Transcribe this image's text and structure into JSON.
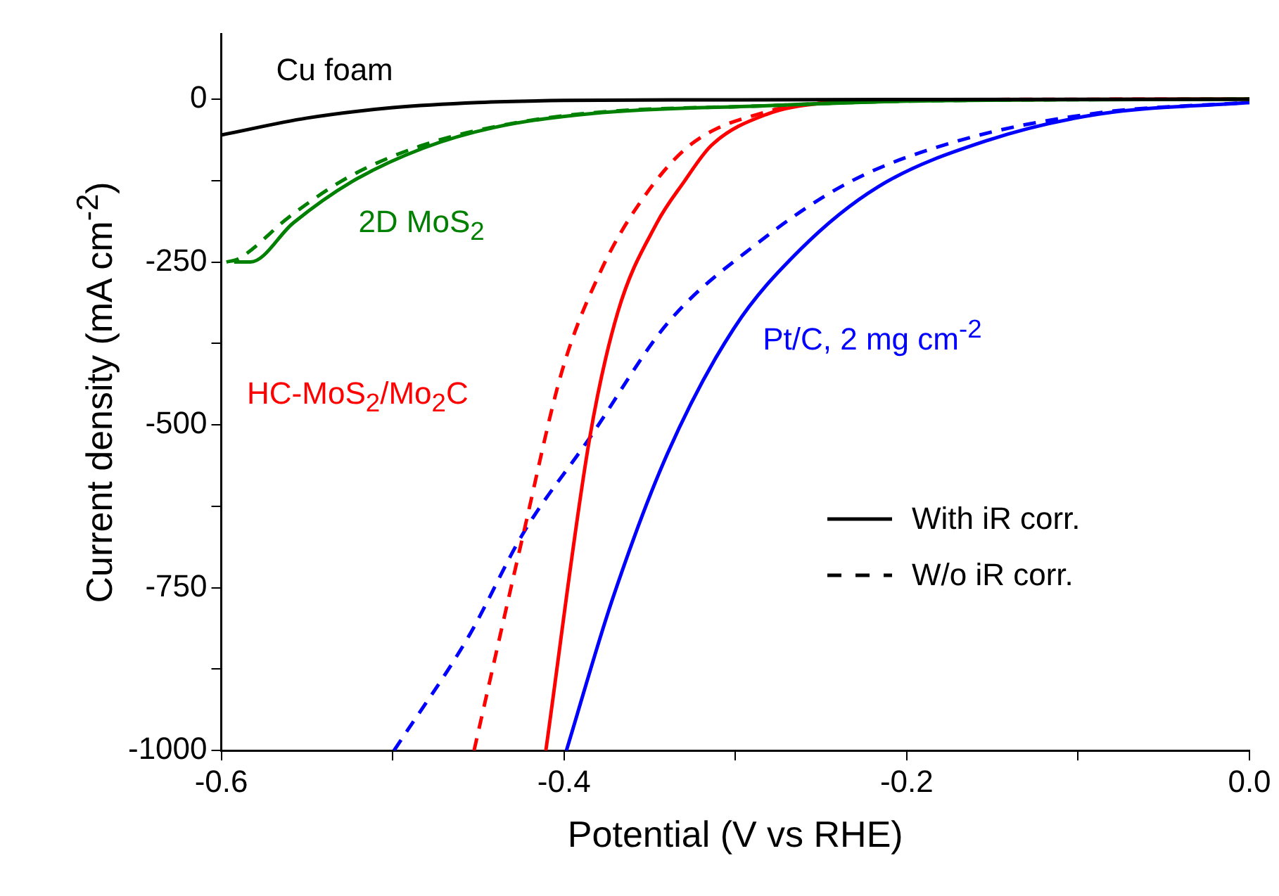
{
  "chart_data": {
    "type": "line",
    "xlabel": "Potential (V vs RHE)",
    "ylabel": "Current density (mA cm$^{-2}$)",
    "xlim": [
      -0.6,
      0
    ],
    "ylim": [
      -1000,
      100
    ],
    "xticks": [
      -0.6,
      {
        "value": -0.5,
        "label": null
      },
      -0.4,
      {
        "value": -0.3,
        "label": null
      },
      -0.2,
      {
        "value": -0.1,
        "label": null
      },
      {
        "value": 0,
        "label": "0.0"
      }
    ],
    "yticks": [
      -1000,
      {
        "value": -875,
        "label": null
      },
      -750,
      {
        "value": -625,
        "label": null
      },
      -500,
      {
        "value": -375,
        "label": null
      },
      -250,
      {
        "value": -125,
        "label": null
      },
      0
    ],
    "marker": "none",
    "annotations": [
      "With iR corr.",
      "W/o iR corr."
    ],
    "series": [
      {
        "name": "Cu foam",
        "color": "#000000",
        "line_style": "solid",
        "x": [
          -0.6,
          -0.55,
          -0.5,
          -0.45,
          -0.4,
          -0.3,
          0
        ],
        "values": [
          -55,
          -29,
          -13,
          -5,
          -2,
          -1,
          0
        ]
      },
      {
        "name": "2D MoS$_{2}$",
        "color": "#008000",
        "line_style": "solid",
        "x": [
          -0.5925,
          -0.583,
          -0.558,
          -0.524,
          -0.482,
          -0.44,
          -0.384,
          -0.281,
          -0.2,
          0
        ],
        "values": [
          -250,
          -250,
          -190,
          -127,
          -75,
          -43,
          -22,
          -10,
          -3,
          0
        ]
      },
      {
        "color": "#008000",
        "line_style": "dashed",
        "x": [
          -0.597,
          -0.59,
          -0.56,
          -0.526,
          -0.484,
          -0.44,
          -0.384,
          -0.281,
          -0.2,
          0
        ],
        "values": [
          -250,
          -245,
          -180,
          -120,
          -72,
          -42,
          -21,
          -10,
          -3,
          0
        ]
      },
      {
        "name": "HC-MoS$_{2}$/Mo$_{2}$C",
        "color": "#ff0000",
        "line_style": "solid",
        "x": [
          -0.4106,
          -0.385,
          -0.3686,
          -0.346,
          -0.33,
          -0.314,
          -0.2815,
          -0.2494,
          -0.2,
          0
        ],
        "values": [
          -1000,
          -520,
          -327,
          -191,
          -127,
          -71,
          -23,
          -6,
          -1,
          0
        ]
      },
      {
        "color": "#ff0000",
        "line_style": "dashed",
        "x": [
          -0.4525,
          -0.4235,
          -0.401,
          -0.3784,
          -0.3557,
          -0.3267,
          -0.2815,
          -0.2494,
          -0.2,
          0
        ],
        "values": [
          -1000,
          -665,
          -416,
          -263,
          -159,
          -71,
          -19,
          -6,
          -1,
          0
        ]
      },
      {
        "name": "Pt/C, 2 mg cm$^{-2}$",
        "color": "#0000ff",
        "line_style": "solid",
        "x": [
          -0.3986,
          -0.3719,
          -0.3396,
          -0.3009,
          -0.2622,
          -0.217,
          -0.1525,
          -0.0881,
          0
        ],
        "values": [
          -1000,
          -769,
          -544,
          -352,
          -231,
          -135,
          -63,
          -23,
          -5
        ]
      },
      {
        "color": "#0000ff",
        "line_style": "dashed",
        "x": [
          -0.4992,
          -0.4557,
          -0.4235,
          -0.385,
          -0.3396,
          -0.288,
          -0.2332,
          -0.1687,
          -0.088,
          0
        ],
        "values": [
          -1000,
          -825,
          -665,
          -520,
          -344,
          -223,
          -127,
          -63,
          -21,
          -5
        ]
      }
    ]
  }
}
